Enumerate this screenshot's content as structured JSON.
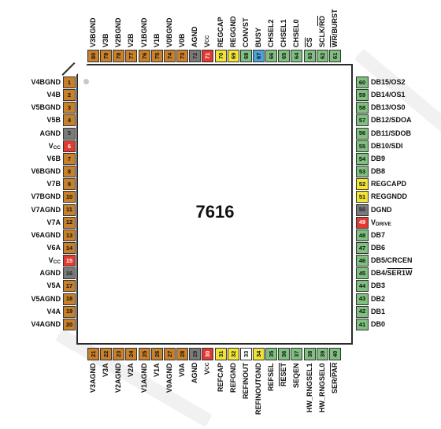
{
  "chip": {
    "name": "7616"
  },
  "colors": {
    "orange": "#c8802a",
    "green": "#7fbf7f",
    "gray": "#7a7a7a",
    "red": "#e23a30",
    "yellow": "#f2e437",
    "blue": "#4aa3d8",
    "white": "#ffffff",
    "green_dark": "#4e9a4e"
  },
  "pins": {
    "left": [
      {
        "num": "1",
        "label": "V4BGND",
        "color": "orange"
      },
      {
        "num": "2",
        "label": "V4B",
        "color": "orange"
      },
      {
        "num": "3",
        "label": "V5BGND",
        "color": "orange"
      },
      {
        "num": "4",
        "label": "V5B",
        "color": "orange"
      },
      {
        "num": "5",
        "label": "AGND",
        "color": "gray"
      },
      {
        "num": "6",
        "label": "V",
        "sub": "CC",
        "color": "red"
      },
      {
        "num": "7",
        "label": "V6B",
        "color": "orange"
      },
      {
        "num": "8",
        "label": "V6BGND",
        "color": "orange"
      },
      {
        "num": "9",
        "label": "V7B",
        "color": "orange"
      },
      {
        "num": "10",
        "label": "V7BGND",
        "color": "orange"
      },
      {
        "num": "11",
        "label": "V7AGND",
        "color": "orange"
      },
      {
        "num": "12",
        "label": "V7A",
        "color": "orange"
      },
      {
        "num": "13",
        "label": "V6AGND",
        "color": "orange"
      },
      {
        "num": "14",
        "label": "V6A",
        "color": "orange"
      },
      {
        "num": "15",
        "label": "V",
        "sub": "CC",
        "color": "red"
      },
      {
        "num": "16",
        "label": "AGND",
        "color": "gray"
      },
      {
        "num": "17",
        "label": "V5A",
        "color": "orange"
      },
      {
        "num": "18",
        "label": "V5AGND",
        "color": "orange"
      },
      {
        "num": "19",
        "label": "V4A",
        "color": "orange"
      },
      {
        "num": "20",
        "label": "V4AGND",
        "color": "orange"
      }
    ],
    "bottom": [
      {
        "num": "21",
        "label": "V3AGND",
        "color": "orange"
      },
      {
        "num": "22",
        "label": "V3A",
        "color": "orange"
      },
      {
        "num": "23",
        "label": "V2AGND",
        "color": "orange"
      },
      {
        "num": "24",
        "label": "V2A",
        "color": "orange"
      },
      {
        "num": "25",
        "label": "V1AGND",
        "color": "orange"
      },
      {
        "num": "26",
        "label": "V1A",
        "color": "orange"
      },
      {
        "num": "27",
        "label": "V0AGND",
        "color": "orange"
      },
      {
        "num": "28",
        "label": "V0A",
        "color": "orange"
      },
      {
        "num": "29",
        "label": "AGND",
        "color": "gray"
      },
      {
        "num": "30",
        "label": "V",
        "sub": "CC",
        "color": "red"
      },
      {
        "num": "31",
        "label": "REFCAP",
        "color": "yellow"
      },
      {
        "num": "32",
        "label": "REFGND",
        "color": "yellow"
      },
      {
        "num": "33",
        "label": "REFINOUT",
        "color": "white"
      },
      {
        "num": "34",
        "label": "REFINOUTGND",
        "color": "yellow"
      },
      {
        "num": "35",
        "label": "REFSEL",
        "color": "green"
      },
      {
        "num": "36",
        "label": "RESET",
        "overline": true,
        "color": "green"
      },
      {
        "num": "37",
        "label": "SEQEN",
        "color": "green"
      },
      {
        "num": "38",
        "label": "HW_RNGSEL1",
        "color": "green"
      },
      {
        "num": "39",
        "label": "HW_RNGSEL0",
        "color": "green"
      },
      {
        "num": "40",
        "label": "SER/",
        "label2": "PAR",
        "overline2": true,
        "color": "green"
      }
    ],
    "right": [
      {
        "num": "41",
        "label": "DB0",
        "color": "green"
      },
      {
        "num": "42",
        "label": "DB1",
        "color": "green"
      },
      {
        "num": "43",
        "label": "DB2",
        "color": "green"
      },
      {
        "num": "44",
        "label": "DB3",
        "color": "green"
      },
      {
        "num": "45",
        "label": "DB4/",
        "label2": "SER1W",
        "overline2": true,
        "color": "green"
      },
      {
        "num": "46",
        "label": "DB5/CRCEN",
        "color": "green"
      },
      {
        "num": "47",
        "label": "DB6",
        "color": "green"
      },
      {
        "num": "48",
        "label": "DB7",
        "color": "green"
      },
      {
        "num": "49",
        "label": "V",
        "sub": "DRIVE",
        "color": "red"
      },
      {
        "num": "50",
        "label": "DGND",
        "color": "gray"
      },
      {
        "num": "51",
        "label": "REGGNDD",
        "color": "yellow"
      },
      {
        "num": "52",
        "label": "REGCAPD",
        "color": "yellow"
      },
      {
        "num": "53",
        "label": "DB8",
        "color": "green"
      },
      {
        "num": "54",
        "label": "DB9",
        "color": "green"
      },
      {
        "num": "55",
        "label": "DB10/SDI",
        "color": "green"
      },
      {
        "num": "56",
        "label": "DB11/SDOB",
        "color": "green"
      },
      {
        "num": "57",
        "label": "DB12/SDOA",
        "color": "green"
      },
      {
        "num": "58",
        "label": "DB13/OS0",
        "color": "green"
      },
      {
        "num": "59",
        "label": "DB14/OS1",
        "color": "green"
      },
      {
        "num": "60",
        "label": "DB15/OS2",
        "color": "green"
      }
    ],
    "top": [
      {
        "num": "61",
        "label": "WR",
        "overline": true,
        "label2": "/BURST",
        "color": "green"
      },
      {
        "num": "62",
        "label": "SCLK/",
        "label2": "RD",
        "overline2": true,
        "color": "green"
      },
      {
        "num": "63",
        "label": "CS",
        "overline": true,
        "color": "green"
      },
      {
        "num": "64",
        "label": "CHSEL0",
        "color": "green"
      },
      {
        "num": "65",
        "label": "CHSEL1",
        "color": "green"
      },
      {
        "num": "66",
        "label": "CHSEL2",
        "color": "green"
      },
      {
        "num": "67",
        "label": "BUSY",
        "color": "blue"
      },
      {
        "num": "68",
        "label": "CONVST",
        "color": "green"
      },
      {
        "num": "69",
        "label": "REGGND",
        "color": "yellow"
      },
      {
        "num": "70",
        "label": "REGCAP",
        "color": "yellow"
      },
      {
        "num": "71",
        "label": "V",
        "sub": "CC",
        "color": "red"
      },
      {
        "num": "72",
        "label": "AGND",
        "color": "gray"
      },
      {
        "num": "73",
        "label": "V0B",
        "color": "orange"
      },
      {
        "num": "74",
        "label": "V0BGND",
        "color": "orange"
      },
      {
        "num": "75",
        "label": "V1B",
        "color": "orange"
      },
      {
        "num": "76",
        "label": "V1BGND",
        "color": "orange"
      },
      {
        "num": "77",
        "label": "V2B",
        "color": "orange"
      },
      {
        "num": "78",
        "label": "V2BGND",
        "color": "orange"
      },
      {
        "num": "79",
        "label": "V3B",
        "color": "orange"
      },
      {
        "num": "80",
        "label": "V3BGND",
        "color": "orange"
      }
    ]
  }
}
